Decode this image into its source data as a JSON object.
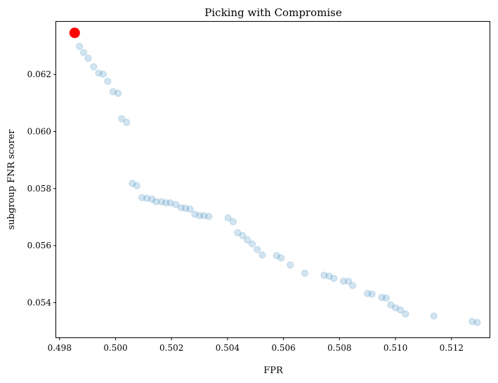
{
  "chart_data": {
    "type": "scatter",
    "title": "Picking with Compromise",
    "xlabel": "FPR",
    "ylabel": "subgroup FNR scorer",
    "xlim": [
      0.49788,
      0.51336
    ],
    "ylim": [
      0.05278,
      0.06385
    ],
    "x_ticks": [
      0.498,
      0.5,
      0.502,
      0.504,
      0.506,
      0.508,
      0.51,
      0.512
    ],
    "x_tick_labels": [
      "0.498",
      "0.500",
      "0.502",
      "0.504",
      "0.506",
      "0.508",
      "0.510",
      "0.512"
    ],
    "y_ticks": [
      0.054,
      0.056,
      0.058,
      0.06,
      0.062
    ],
    "y_tick_labels": [
      "0.054",
      "0.056",
      "0.058",
      "0.060",
      "0.062"
    ],
    "grid": false,
    "legend": false,
    "colors": {
      "points": "#1f77b4",
      "highlight": "#ff0000"
    },
    "point_alpha": 0.2,
    "highlight": {
      "x": 0.49854,
      "y": 0.06346
    },
    "points": [
      [
        0.49871,
        0.06299
      ],
      [
        0.49886,
        0.06277
      ],
      [
        0.49902,
        0.06257
      ],
      [
        0.49922,
        0.06227
      ],
      [
        0.4994,
        0.06205
      ],
      [
        0.49956,
        0.06201
      ],
      [
        0.49972,
        0.06176
      ],
      [
        0.49991,
        0.0614
      ],
      [
        0.50009,
        0.06134
      ],
      [
        0.50022,
        0.06045
      ],
      [
        0.5004,
        0.06032
      ],
      [
        0.5006,
        0.05818
      ],
      [
        0.50076,
        0.0581
      ],
      [
        0.50094,
        0.05768
      ],
      [
        0.50112,
        0.05766
      ],
      [
        0.5013,
        0.05763
      ],
      [
        0.50145,
        0.05754
      ],
      [
        0.50164,
        0.05754
      ],
      [
        0.5018,
        0.0575
      ],
      [
        0.50196,
        0.0575
      ],
      [
        0.50215,
        0.05744
      ],
      [
        0.50234,
        0.05733
      ],
      [
        0.5025,
        0.05731
      ],
      [
        0.50266,
        0.05728
      ],
      [
        0.50283,
        0.0571
      ],
      [
        0.503,
        0.05705
      ],
      [
        0.50316,
        0.05705
      ],
      [
        0.50333,
        0.05702
      ],
      [
        0.50402,
        0.05697
      ],
      [
        0.5042,
        0.05684
      ],
      [
        0.50436,
        0.05645
      ],
      [
        0.50454,
        0.05635
      ],
      [
        0.50471,
        0.0562
      ],
      [
        0.50488,
        0.05606
      ],
      [
        0.50506,
        0.05586
      ],
      [
        0.50524,
        0.05567
      ],
      [
        0.50575,
        0.05565
      ],
      [
        0.50591,
        0.05557
      ],
      [
        0.50624,
        0.05532
      ],
      [
        0.50676,
        0.05503
      ],
      [
        0.50745,
        0.05496
      ],
      [
        0.50763,
        0.05493
      ],
      [
        0.5078,
        0.05485
      ],
      [
        0.50814,
        0.05475
      ],
      [
        0.50832,
        0.05475
      ],
      [
        0.50847,
        0.0546
      ],
      [
        0.509,
        0.05432
      ],
      [
        0.50916,
        0.0543
      ],
      [
        0.50951,
        0.05418
      ],
      [
        0.50967,
        0.05416
      ],
      [
        0.50983,
        0.05392
      ],
      [
        0.51,
        0.05382
      ],
      [
        0.51018,
        0.05374
      ],
      [
        0.51036,
        0.0536
      ],
      [
        0.51137,
        0.05353
      ],
      [
        0.51274,
        0.05334
      ],
      [
        0.51292,
        0.0533
      ]
    ]
  }
}
